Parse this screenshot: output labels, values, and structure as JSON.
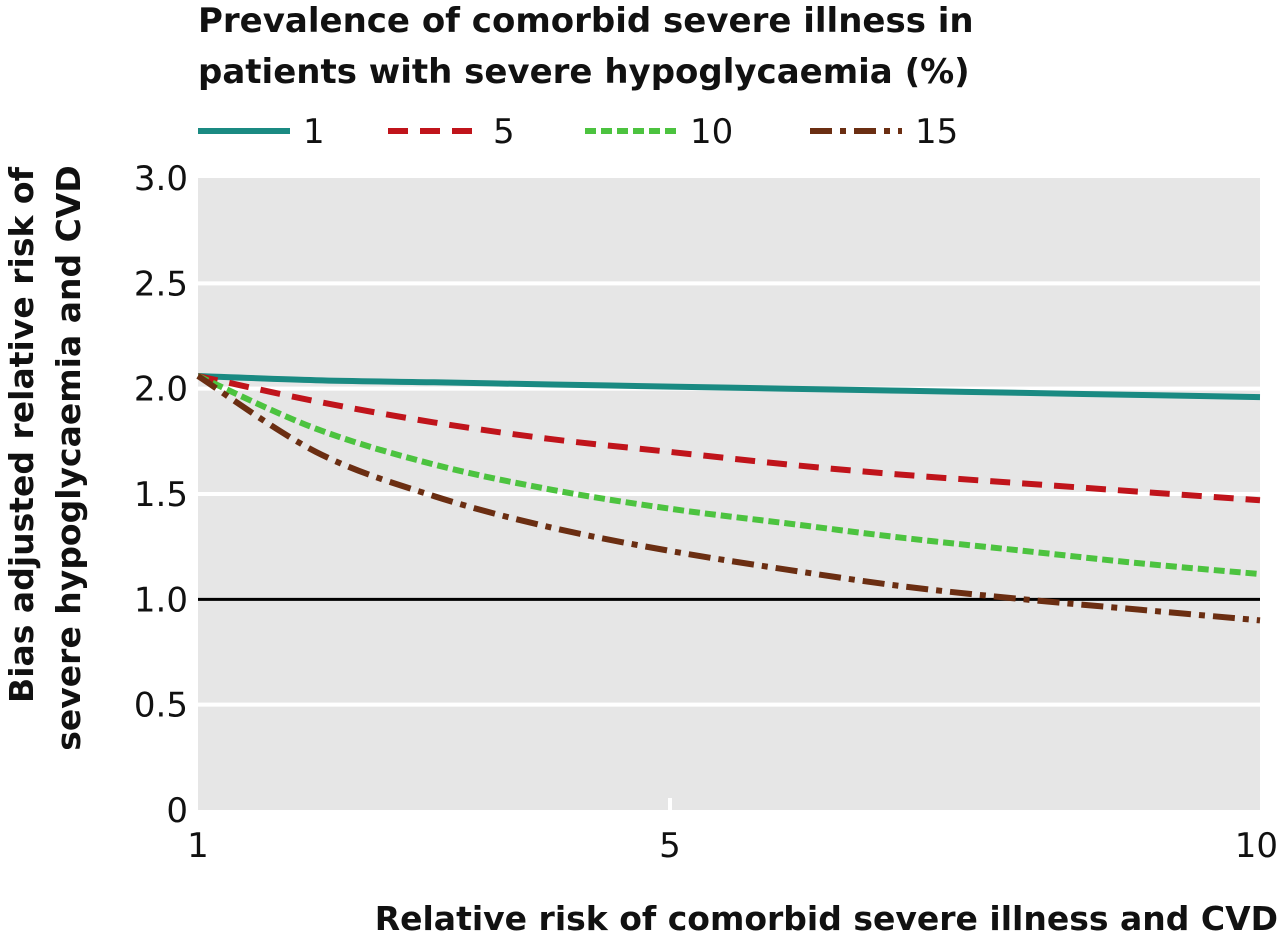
{
  "chart_data": {
    "type": "line",
    "legend": {
      "title_line1": "Prevalence of comorbid severe illness in",
      "title_line2": "patients with severe hypoglycaemia (%)",
      "placement": "top"
    },
    "xlabel": "Relative risk of comorbid severe illness and CVD",
    "ylabel_line1": "Bias adjusted relative risk of",
    "ylabel_line2": "severe hypoglycaemia and CVD",
    "xlim": [
      1,
      10
    ],
    "ylim": [
      0,
      3.0
    ],
    "x_ticks": [
      {
        "value": 1,
        "label": "1"
      },
      {
        "value": 5,
        "label": "5"
      },
      {
        "value": 10,
        "label": "10"
      }
    ],
    "y_ticks": [
      {
        "value": 0,
        "label": "0"
      },
      {
        "value": 0.5,
        "label": "0.5"
      },
      {
        "value": 1.0,
        "label": "1.0"
      },
      {
        "value": 1.5,
        "label": "1.5"
      },
      {
        "value": 2.0,
        "label": "2.0"
      },
      {
        "value": 2.5,
        "label": "2.5"
      },
      {
        "value": 3.0,
        "label": "3.0"
      }
    ],
    "grid": true,
    "background": "#e6e6e6",
    "reference_line": {
      "y": 1.0,
      "color": "#000000"
    },
    "x": [
      1,
      2,
      3,
      4,
      5,
      6,
      7,
      8,
      9,
      10
    ],
    "series": [
      {
        "name": "1",
        "color": "#1a8a82",
        "dash": "solid",
        "values": [
          2.06,
          2.04,
          2.03,
          2.02,
          2.01,
          2.0,
          1.99,
          1.98,
          1.97,
          1.96
        ]
      },
      {
        "name": "5",
        "color": "#c0141b",
        "dash": "dashed",
        "values": [
          2.06,
          1.94,
          1.84,
          1.76,
          1.7,
          1.64,
          1.59,
          1.55,
          1.51,
          1.47
        ]
      },
      {
        "name": "10",
        "color": "#4cc33f",
        "dash": "dotted",
        "values": [
          2.06,
          1.81,
          1.64,
          1.52,
          1.43,
          1.36,
          1.29,
          1.23,
          1.17,
          1.12
        ]
      },
      {
        "name": "15",
        "color": "#6b2e12",
        "dash": "dashdot",
        "values": [
          2.06,
          1.7,
          1.49,
          1.34,
          1.23,
          1.14,
          1.06,
          1.0,
          0.95,
          0.9
        ]
      }
    ]
  }
}
